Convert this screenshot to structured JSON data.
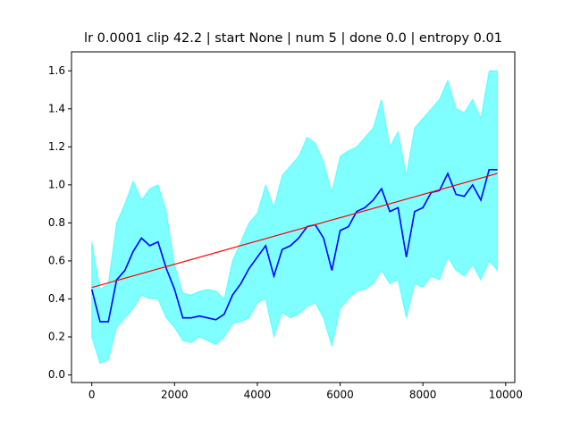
{
  "chart_data": {
    "type": "line",
    "title": "lr 0.0001 clip 42.2 | start None | num 5 | done 0.0 | entropy 0.01",
    "x": [
      0,
      200,
      400,
      600,
      800,
      1000,
      1200,
      1400,
      1600,
      1800,
      2000,
      2200,
      2400,
      2600,
      2800,
      3000,
      3200,
      3400,
      3600,
      3800,
      4000,
      4200,
      4400,
      4600,
      4800,
      5000,
      5200,
      5400,
      5600,
      5800,
      6000,
      6200,
      6400,
      6600,
      6800,
      7000,
      7200,
      7400,
      7600,
      7800,
      8000,
      8200,
      8400,
      8600,
      8800,
      9000,
      9200,
      9400,
      9600,
      9800
    ],
    "line": {
      "color": "#0000ff",
      "values": [
        0.45,
        0.28,
        0.28,
        0.5,
        0.55,
        0.65,
        0.72,
        0.68,
        0.7,
        0.56,
        0.45,
        0.3,
        0.3,
        0.31,
        0.3,
        0.29,
        0.32,
        0.42,
        0.48,
        0.56,
        0.62,
        0.68,
        0.52,
        0.66,
        0.68,
        0.72,
        0.78,
        0.79,
        0.72,
        0.55,
        0.76,
        0.78,
        0.86,
        0.88,
        0.92,
        0.98,
        0.86,
        0.88,
        0.62,
        0.86,
        0.88,
        0.96,
        0.97,
        1.06,
        0.95,
        0.94,
        1.0,
        0.92,
        1.08,
        1.08
      ]
    },
    "band": {
      "color": "#00ffff",
      "upper": [
        0.7,
        0.45,
        0.48,
        0.8,
        0.9,
        1.02,
        0.92,
        0.98,
        1.0,
        0.86,
        0.58,
        0.43,
        0.42,
        0.44,
        0.45,
        0.44,
        0.4,
        0.6,
        0.7,
        0.8,
        0.85,
        1.0,
        0.88,
        1.05,
        1.1,
        1.15,
        1.25,
        1.22,
        1.12,
        0.96,
        1.15,
        1.18,
        1.2,
        1.25,
        1.3,
        1.45,
        1.2,
        1.28,
        1.05,
        1.3,
        1.35,
        1.4,
        1.45,
        1.55,
        1.4,
        1.38,
        1.45,
        1.35,
        1.6,
        1.6
      ],
      "lower": [
        0.2,
        0.06,
        0.08,
        0.25,
        0.3,
        0.35,
        0.42,
        0.4,
        0.4,
        0.3,
        0.25,
        0.18,
        0.17,
        0.2,
        0.18,
        0.16,
        0.2,
        0.27,
        0.28,
        0.3,
        0.38,
        0.4,
        0.2,
        0.33,
        0.3,
        0.32,
        0.36,
        0.38,
        0.3,
        0.15,
        0.35,
        0.4,
        0.44,
        0.45,
        0.48,
        0.55,
        0.48,
        0.5,
        0.3,
        0.48,
        0.46,
        0.52,
        0.5,
        0.62,
        0.55,
        0.52,
        0.58,
        0.5,
        0.6,
        0.55
      ]
    },
    "trend": {
      "color": "#ff0000",
      "x": [
        0,
        9800
      ],
      "values": [
        0.46,
        1.06
      ]
    },
    "xlim": [
      -490,
      10220
    ],
    "ylim": [
      -0.04,
      1.7
    ],
    "xticks": [
      0,
      2000,
      4000,
      6000,
      8000,
      10000
    ],
    "yticks": [
      {
        "value": 0,
        "label": "0.0"
      },
      0.2,
      0.4,
      0.6,
      0.8,
      {
        "value": 1,
        "label": "1.0"
      },
      1.2,
      1.4,
      1.6
    ]
  }
}
